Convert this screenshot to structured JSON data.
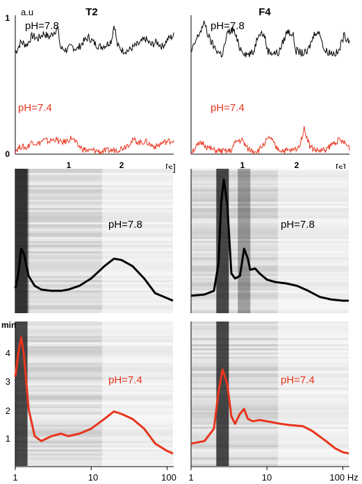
{
  "colors": {
    "black_trace": "#000000",
    "red_trace": "#e8341c"
  },
  "panel_titles": [
    "T2",
    "F4"
  ],
  "trace_panels": {
    "y_unit": "a.u",
    "y_ticks": [
      "1",
      "0"
    ],
    "x_ticks": [
      "1",
      "2"
    ],
    "x_unit": "[s]",
    "labels": [
      "pH=7.8",
      "pH=7.4"
    ]
  },
  "spectro_panels": {
    "y_unit": "min",
    "y_ticks": [
      "4",
      "3",
      "2",
      "1"
    ],
    "x_ticks": [
      "1",
      "10",
      "100"
    ],
    "x_ticks_right": [
      "1",
      "10",
      "100 Hz"
    ],
    "labels": [
      "pH=7.8",
      "pH=7.4"
    ]
  },
  "chart_data": [
    {
      "type": "line",
      "panel": "T2 voltage traces",
      "title": "T2",
      "xlabel": "[s]",
      "ylabel": "a.u",
      "xlim": [
        0,
        2.8
      ],
      "ylim": [
        0,
        1
      ],
      "series": [
        {
          "name": "pH=7.8",
          "color": "#000000",
          "x": [
            0,
            0.1,
            0.2,
            0.3,
            0.4,
            0.5,
            0.6,
            0.7,
            0.75,
            0.8,
            0.9,
            1.0,
            1.1,
            1.2,
            1.3,
            1.4,
            1.5,
            1.6,
            1.7,
            1.75,
            1.8,
            1.9,
            2.0,
            2.1,
            2.2,
            2.3,
            2.4,
            2.5,
            2.6,
            2.7,
            2.8
          ],
          "y": [
            0.52,
            0.66,
            0.62,
            0.74,
            0.7,
            0.77,
            0.72,
            0.8,
            0.84,
            0.58,
            0.56,
            0.6,
            0.57,
            0.66,
            0.72,
            0.64,
            0.6,
            0.62,
            0.68,
            0.9,
            0.62,
            0.55,
            0.55,
            0.6,
            0.64,
            0.7,
            0.62,
            0.66,
            0.6,
            0.7,
            0.74
          ]
        },
        {
          "name": "pH=7.4",
          "color": "#e8341c",
          "x": [
            0,
            0.1,
            0.2,
            0.3,
            0.4,
            0.5,
            0.6,
            0.7,
            0.8,
            0.9,
            1.0,
            1.1,
            1.2,
            1.3,
            1.4,
            1.5,
            1.6,
            1.7,
            1.8,
            1.9,
            2.0,
            2.1,
            2.2,
            2.3,
            2.4,
            2.5,
            2.6,
            2.7,
            2.8
          ],
          "y": [
            0.06,
            0.12,
            0.1,
            0.2,
            0.16,
            0.22,
            0.2,
            0.24,
            0.18,
            0.2,
            0.26,
            0.14,
            0.08,
            0.05,
            0.06,
            0.04,
            0.05,
            0.06,
            0.07,
            0.1,
            0.16,
            0.22,
            0.18,
            0.2,
            0.14,
            0.12,
            0.18,
            0.2,
            0.22
          ]
        }
      ]
    },
    {
      "type": "line",
      "panel": "F4 voltage traces",
      "title": "F4",
      "xlabel": "[s]",
      "ylabel": "",
      "xlim": [
        0,
        2.8
      ],
      "ylim": [
        0,
        1
      ],
      "series": [
        {
          "name": "pH=7.8",
          "color": "#000000",
          "x": [
            0,
            0.1,
            0.2,
            0.25,
            0.3,
            0.4,
            0.5,
            0.55,
            0.65,
            0.75,
            0.85,
            0.95,
            1.0,
            1.1,
            1.2,
            1.3,
            1.35,
            1.45,
            1.55,
            1.7,
            1.8,
            1.85,
            1.95,
            2.05,
            2.2,
            2.3,
            2.35,
            2.5,
            2.6,
            2.7,
            2.8
          ],
          "y": [
            0.52,
            0.7,
            0.85,
            0.9,
            0.74,
            0.6,
            0.52,
            0.5,
            0.78,
            0.82,
            0.6,
            0.52,
            0.5,
            0.52,
            0.8,
            0.74,
            0.55,
            0.52,
            0.52,
            0.8,
            0.76,
            0.55,
            0.52,
            0.52,
            0.8,
            0.74,
            0.55,
            0.52,
            0.52,
            0.74,
            0.68
          ]
        },
        {
          "name": "pH=7.4",
          "color": "#e8341c",
          "x": [
            0,
            0.1,
            0.2,
            0.3,
            0.4,
            0.5,
            0.6,
            0.7,
            0.8,
            0.9,
            1.0,
            1.1,
            1.2,
            1.3,
            1.4,
            1.5,
            1.6,
            1.7,
            1.8,
            1.9,
            2.0,
            2.1,
            2.2,
            2.3,
            2.4,
            2.5,
            2.6,
            2.7,
            2.8
          ],
          "y": [
            0.04,
            0.12,
            0.18,
            0.1,
            0.06,
            0.05,
            0.04,
            0.05,
            0.2,
            0.22,
            0.08,
            0.05,
            0.06,
            0.18,
            0.26,
            0.1,
            0.06,
            0.05,
            0.06,
            0.1,
            0.4,
            0.12,
            0.06,
            0.05,
            0.08,
            0.16,
            0.22,
            0.18,
            0.1
          ]
        }
      ]
    },
    {
      "type": "heatmap",
      "panel": "T2 spectrogram pH=7.8",
      "xlabel": "",
      "x_scale": "log",
      "xlim": [
        1,
        120
      ],
      "dark_bands_hz": [
        1.2,
        1.25
      ],
      "overlay": {
        "name": "pH=7.8",
        "color": "#000000",
        "hz": [
          1,
          1.1,
          1.2,
          1.3,
          1.5,
          1.8,
          2.2,
          3,
          4,
          5,
          7,
          10,
          15,
          20,
          25,
          35,
          50,
          70,
          100,
          120
        ],
        "power": [
          0.1,
          0.22,
          0.42,
          0.38,
          0.2,
          0.12,
          0.09,
          0.08,
          0.08,
          0.09,
          0.12,
          0.18,
          0.28,
          0.34,
          0.33,
          0.28,
          0.18,
          0.06,
          0.02,
          0.0
        ]
      }
    },
    {
      "type": "heatmap",
      "panel": "F4 spectrogram pH=7.8",
      "xlabel": "",
      "x_scale": "log",
      "xlim": [
        1,
        120
      ],
      "dark_bands_hz": [
        2.6,
        5.0
      ],
      "overlay": {
        "name": "pH=7.8",
        "color": "#000000",
        "hz": [
          1,
          1.5,
          2,
          2.3,
          2.5,
          2.7,
          3,
          3.4,
          3.8,
          4.4,
          5,
          5.6,
          6,
          7,
          8,
          10,
          13,
          18,
          25,
          35,
          50,
          70,
          100,
          120
        ],
        "power": [
          0.04,
          0.05,
          0.08,
          0.3,
          0.8,
          0.98,
          0.78,
          0.22,
          0.18,
          0.2,
          0.42,
          0.34,
          0.25,
          0.26,
          0.22,
          0.17,
          0.15,
          0.14,
          0.12,
          0.08,
          0.03,
          0.01,
          0.0,
          0.0
        ]
      }
    },
    {
      "type": "heatmap",
      "panel": "T2 spectrogram pH=7.4",
      "xlabel": "",
      "ylabel": "min",
      "x_scale": "log",
      "xlim": [
        1,
        120
      ],
      "ylim": [
        0,
        5
      ],
      "dark_bands_hz": [
        1.2
      ],
      "overlay": {
        "name": "pH=7.4",
        "color": "#e8341c",
        "hz": [
          1,
          1.1,
          1.2,
          1.3,
          1.5,
          1.8,
          2.2,
          3,
          4,
          5,
          7,
          10,
          15,
          20,
          25,
          35,
          50,
          70,
          100,
          120
        ],
        "power": [
          0.62,
          0.82,
          0.94,
          0.8,
          0.36,
          0.14,
          0.1,
          0.14,
          0.16,
          0.14,
          0.16,
          0.2,
          0.28,
          0.34,
          0.32,
          0.28,
          0.2,
          0.08,
          0.02,
          0.0
        ]
      }
    },
    {
      "type": "heatmap",
      "panel": "F4 spectrogram pH=7.4",
      "xlabel": "Hz",
      "x_scale": "log",
      "xlim": [
        1,
        120
      ],
      "dark_bands_hz": [
        2.6
      ],
      "overlay": {
        "name": "pH=7.4",
        "color": "#e8341c",
        "hz": [
          1,
          1.5,
          2,
          2.3,
          2.6,
          3,
          3.4,
          3.8,
          4.4,
          5,
          5.6,
          6.5,
          8,
          10,
          15,
          20,
          30,
          40,
          60,
          80,
          100,
          120
        ],
        "power": [
          0.08,
          0.1,
          0.2,
          0.5,
          0.68,
          0.56,
          0.3,
          0.24,
          0.32,
          0.36,
          0.28,
          0.26,
          0.27,
          0.26,
          0.24,
          0.23,
          0.22,
          0.18,
          0.1,
          0.04,
          0.01,
          0.0
        ]
      }
    }
  ]
}
